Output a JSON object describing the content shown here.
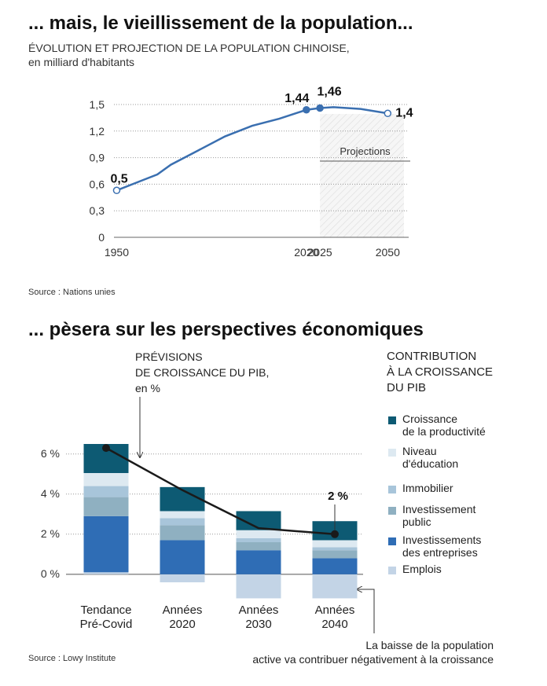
{
  "chart_data": [
    {
      "type": "line",
      "title": "... mais, le vieillissement de la population...",
      "subtitle": "ÉVOLUTION ET PROJECTION DE LA POPULATION CHINOISE,\nen milliard d'habitants",
      "x": [
        1950,
        1960,
        1965,
        1970,
        1980,
        1990,
        2000,
        2010,
        2020,
        2025,
        2030,
        2040,
        2050
      ],
      "series": [
        {
          "color": "#3a6fb0",
          "values": [
            0.53,
            0.65,
            0.71,
            0.82,
            0.98,
            1.14,
            1.26,
            1.34,
            1.44,
            1.46,
            1.47,
            1.45,
            1.4
          ],
          "value_labels": [
            "0,5",
            null,
            null,
            null,
            null,
            null,
            null,
            null,
            "1,44",
            "1,46",
            null,
            null,
            "1,4"
          ]
        }
      ],
      "xlim": [
        1949,
        2056
      ],
      "xticks": [
        1950,
        2020,
        2025,
        2050
      ],
      "ylim": [
        0,
        1.5
      ],
      "yticks": [
        0,
        {
          "value": 0.3,
          "label": "0,3"
        },
        {
          "value": 0.6,
          "label": "0,6"
        },
        {
          "value": 0.9,
          "label": "0,9"
        },
        {
          "value": 1.2,
          "label": "1,2"
        },
        {
          "value": 1.5,
          "label": "1,5"
        }
      ],
      "grid": true,
      "projection": {
        "label": "Projections",
        "x_start": 2025
      },
      "source": "Source : Nations unies"
    },
    {
      "type": "stacked_bar",
      "title": "... pèsera sur les perspectives économiques",
      "categories": [
        "Tendance\nPré-Covid",
        "Années\n2020",
        "Années\n2030",
        "Années\n2040"
      ],
      "legend_title": "CONTRIBUTION\nÀ LA CROISSANCE\nDU PIB",
      "series": [
        {
          "name": "Croissance\nde la productivité",
          "color": "#0d5a73",
          "values": [
            1.45,
            1.2,
            0.95,
            0.95
          ]
        },
        {
          "name": "Niveau\nd'éducation",
          "color": "#dde9f1",
          "values": [
            0.65,
            0.35,
            0.4,
            0.35
          ]
        },
        {
          "name": "Immobilier",
          "color": "#a8c5da",
          "values": [
            0.55,
            0.35,
            0.2,
            0.15
          ]
        },
        {
          "name": "Investissement\npublic",
          "color": "#8fb0c1",
          "values": [
            0.95,
            0.75,
            0.4,
            0.4
          ]
        },
        {
          "name": "Investissements\ndes entreprises",
          "color": "#2f6db5",
          "values": [
            2.8,
            1.7,
            1.2,
            0.8
          ]
        },
        {
          "name": "Emplois",
          "color": "#c3d4e6",
          "values": [
            0.1,
            -0.4,
            -1.2,
            -1.2
          ]
        },
        {
          "name": "PRÉVISIONS\nDE CROISSANCE DU PIB,\nen %",
          "type": "line",
          "color": "#1a1a1a",
          "values": [
            6.3,
            4.2,
            2.3,
            2
          ],
          "value_labels": [
            null,
            null,
            null,
            "2 %"
          ]
        }
      ],
      "ylim": [
        -1.3,
        6.5
      ],
      "yticks": [
        {
          "value": 0,
          "label": "0 %"
        },
        {
          "value": 2,
          "label": "2 %"
        },
        {
          "value": 4,
          "label": "4 %"
        },
        {
          "value": 6,
          "label": "6 %"
        }
      ],
      "grid": true,
      "annotation": "La baisse de la population\nactive va contribuer négativement à la croissance",
      "source": "Source : Lowy Institute"
    }
  ]
}
